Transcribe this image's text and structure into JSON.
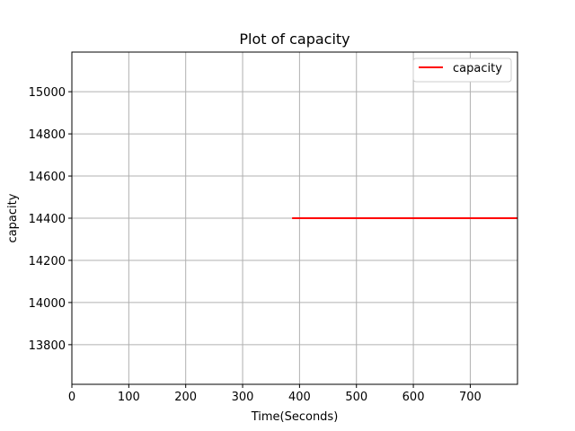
{
  "chart_data": {
    "type": "line",
    "title": "Plot of capacity",
    "xlabel": "Time(Seconds)",
    "ylabel": "capacity",
    "xlim": [
      0,
      783
    ],
    "ylim": [
      13612,
      15188
    ],
    "xticks": [
      0,
      100,
      200,
      300,
      400,
      500,
      600,
      700
    ],
    "yticks": [
      13800,
      14000,
      14200,
      14400,
      14600,
      14800,
      15000
    ],
    "grid": true,
    "legend_position": "top-right",
    "series": [
      {
        "name": "capacity",
        "color": "#ff0000",
        "x": [
          387,
          783
        ],
        "y": [
          14400,
          14400
        ]
      }
    ]
  }
}
